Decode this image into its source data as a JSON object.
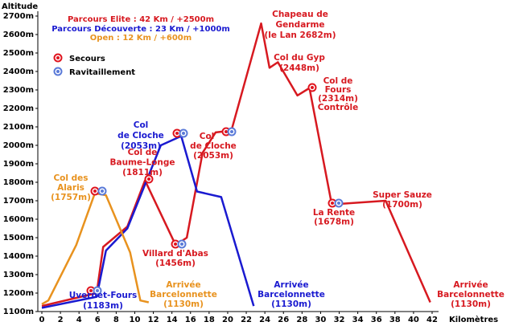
{
  "chart_data": {
    "type": "line",
    "y_label": "Altitude",
    "x_label": "Kilomètres",
    "xlim": [
      0,
      42
    ],
    "ylim": [
      1100,
      2700
    ],
    "xticks": [
      0,
      2,
      4,
      6,
      8,
      10,
      12,
      14,
      16,
      18,
      20,
      22,
      24,
      26,
      28,
      30,
      32,
      34,
      36,
      38,
      40,
      42
    ],
    "yticks": [
      {
        "value": 1100,
        "label": "1100m"
      },
      {
        "value": 1200,
        "label": "1200m"
      },
      {
        "value": 1300,
        "label": "1300m"
      },
      {
        "value": 1400,
        "label": "1400m"
      },
      {
        "value": 1500,
        "label": "1500m"
      },
      {
        "value": 1600,
        "label": "1600m"
      },
      {
        "value": 1700,
        "label": "1700m"
      },
      {
        "value": 1800,
        "label": "1800m"
      },
      {
        "value": 1900,
        "label": "1900m"
      },
      {
        "value": 2000,
        "label": "2000m"
      },
      {
        "value": 2100,
        "label": "2100m"
      },
      {
        "value": 2200,
        "label": "2200m"
      },
      {
        "value": 2300,
        "label": "2300m"
      },
      {
        "value": 2400,
        "label": "2400m"
      },
      {
        "value": 2500,
        "label": "2500m"
      },
      {
        "value": 2600,
        "label": "2600m"
      },
      {
        "value": 2700,
        "label": "2700m"
      }
    ],
    "series": [
      {
        "name": "Parcours Elite : 42 Km  / +2500m",
        "color": "#d71920",
        "x": [
          0,
          5.9,
          6.6,
          9.2,
          11.1,
          14.4,
          15.6,
          17.3,
          18.7,
          20.4,
          23.6,
          24.5,
          25.4,
          27.5,
          28.8,
          31.2,
          37,
          41.8
        ],
        "values": [
          1130,
          1200,
          1450,
          1560,
          1810,
          1460,
          1500,
          1960,
          2070,
          2080,
          2660,
          2420,
          2450,
          2270,
          2310,
          1680,
          1700,
          1150
        ]
      },
      {
        "name": "Parcours Découverte : 23 Km / +1000m",
        "color": "#1a1ad0",
        "x": [
          0,
          5.9,
          6.9,
          9.2,
          12.8,
          15,
          16.7,
          19.3,
          22.8
        ],
        "values": [
          1120,
          1180,
          1430,
          1550,
          2000,
          2050,
          1750,
          1720,
          1130
        ]
      },
      {
        "name": "Open : 12 Km  / +600m",
        "color": "#e8921e",
        "x": [
          0,
          0.7,
          3.7,
          5.7,
          6.9,
          9.5,
          10.6,
          11.5
        ],
        "values": [
          1140,
          1160,
          1460,
          1740,
          1730,
          1420,
          1160,
          1150
        ]
      }
    ],
    "markers": [
      "Secours",
      "Ravitaillement"
    ],
    "annotations": [
      {
        "color": "#d71920",
        "lines": [
          "Chapeau de",
          "Gendarme",
          "(le Lan 2682m)"
        ]
      },
      {
        "color": "#d71920",
        "lines": [
          "Col du Gyp",
          "(2448m)"
        ]
      },
      {
        "color": "#d71920",
        "lines": [
          "Col de",
          "Fours",
          "(2314m)",
          "Contrôle"
        ]
      },
      {
        "color": "#1a1ad0",
        "lines": [
          "Col",
          "de Cloche",
          "(2053m)"
        ]
      },
      {
        "color": "#d71920",
        "lines": [
          "Col",
          "de Cloche",
          "(2053m)"
        ]
      },
      {
        "color": "#d71920",
        "lines": [
          "Col de",
          "Baume-Longe",
          "(1811m)"
        ]
      },
      {
        "color": "#e8921e",
        "lines": [
          "Col des",
          "Alaris",
          "(1757m)"
        ]
      },
      {
        "color": "#d71920",
        "lines": [
          "Super Sauze",
          "(1700m)"
        ]
      },
      {
        "color": "#d71920",
        "lines": [
          "La Rente",
          "(1678m)"
        ]
      },
      {
        "color": "#d71920",
        "lines": [
          "Villard d'Abas",
          "(1456m)"
        ]
      },
      {
        "color": "#e8921e",
        "lines": [
          "Arrivée",
          "Barcelonnette",
          "(1130m)"
        ]
      },
      {
        "color": "#1a1ad0",
        "lines": [
          "Arrivée",
          "Barcelonnette",
          "(1130m)"
        ]
      },
      {
        "color": "#d71920",
        "lines": [
          "Arrivée",
          "Barcelonnette",
          "(1130m)"
        ]
      },
      {
        "color": "#1a1ad0",
        "lines": [
          "Uvernet-Fours",
          "(1183m)"
        ]
      }
    ]
  }
}
